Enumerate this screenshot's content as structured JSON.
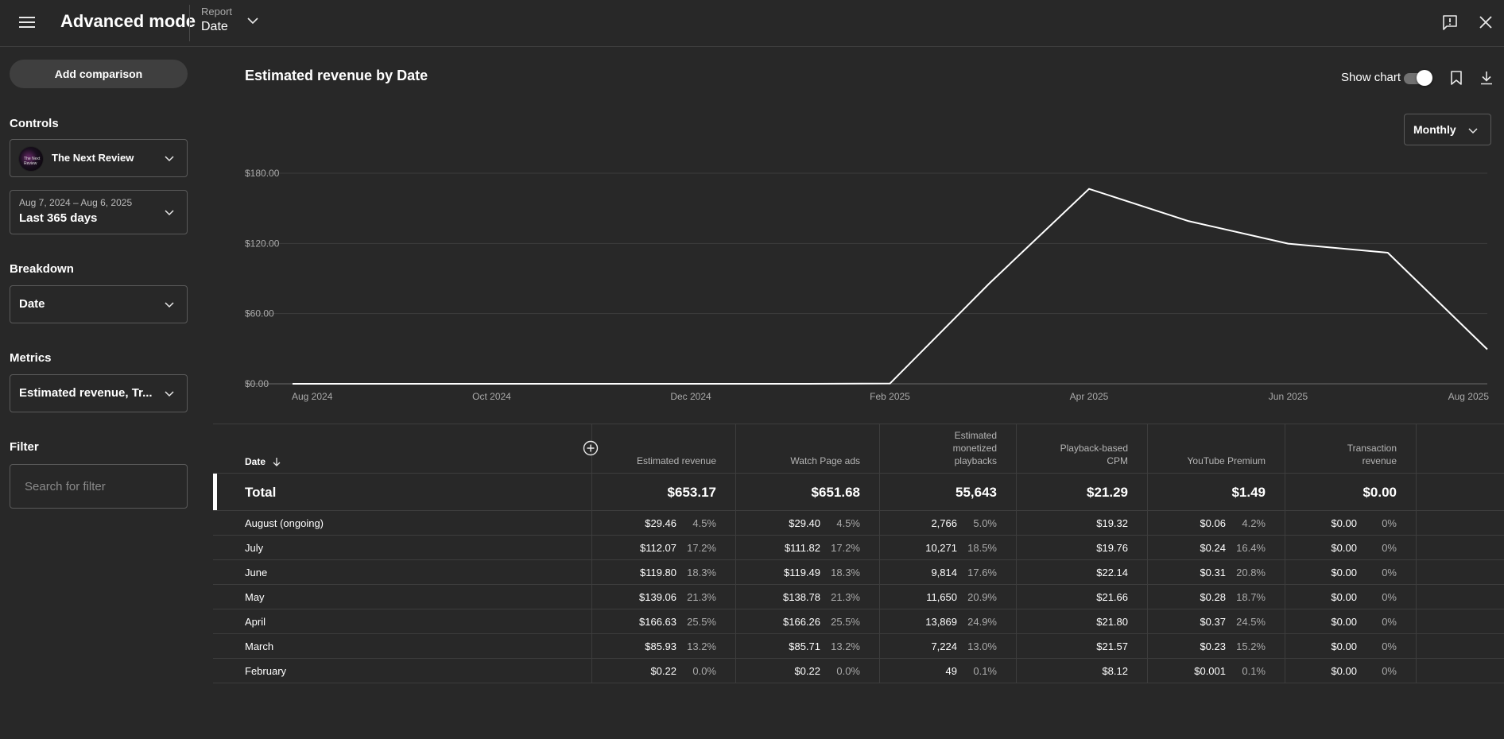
{
  "header": {
    "title": "Advanced mode",
    "report_label": "Report",
    "report_value": "Date"
  },
  "sidebar": {
    "add_comparison": "Add comparison",
    "controls_label": "Controls",
    "channel": "The Next Review",
    "channel_avatar_text": "The Next Review",
    "date_range": "Aug 7, 2024 – Aug 6, 2025",
    "date_preset": "Last 365 days",
    "breakdown_label": "Breakdown",
    "breakdown_value": "Date",
    "metrics_label": "Metrics",
    "metrics_value": "Estimated revenue, Tr...",
    "filter_label": "Filter",
    "filter_placeholder": "Search for filter"
  },
  "main": {
    "chart_title": "Estimated revenue by Date",
    "show_chart_label": "Show chart",
    "show_chart_on": true,
    "period": "Monthly"
  },
  "chart_data": {
    "type": "line",
    "x": [
      "Aug 2024",
      "Sep 2024",
      "Oct 2024",
      "Nov 2024",
      "Dec 2024",
      "Jan 2025",
      "Feb 2025",
      "Mar 2025",
      "Apr 2025",
      "May 2025",
      "Jun 2025",
      "Jul 2025",
      "Aug 2025"
    ],
    "x_tick_labels": [
      "Aug 2024",
      "Oct 2024",
      "Dec 2024",
      "Feb 2025",
      "Apr 2025",
      "Jun 2025",
      "Aug 2025"
    ],
    "y_tick_labels": [
      "$0.00",
      "$60.00",
      "$120.00",
      "$180.00"
    ],
    "series": [
      {
        "values": [
          0,
          0,
          0,
          0,
          0,
          0,
          0.22,
          85.93,
          166.63,
          139.06,
          119.8,
          112.07,
          29.46
        ]
      }
    ],
    "ylim": [
      0,
      180
    ],
    "grid": true,
    "line_color": "#ffffff"
  },
  "table": {
    "columns": [
      {
        "label": "Date"
      },
      {
        "label": "Estimated revenue"
      },
      {
        "label": "Watch Page ads"
      },
      {
        "label": "Estimated monetized playbacks"
      },
      {
        "label": "Playback-based CPM"
      },
      {
        "label": "YouTube Premium"
      },
      {
        "label": "Transaction revenue"
      }
    ],
    "total": {
      "label": "Total",
      "values": [
        "$653.17",
        "$651.68",
        "55,643",
        "$21.29",
        "$1.49",
        "$0.00"
      ]
    },
    "rows": [
      {
        "label": "August (ongoing)",
        "cells": [
          [
            "$29.46",
            "4.5%"
          ],
          [
            "$29.40",
            "4.5%"
          ],
          [
            "2,766",
            "5.0%"
          ],
          [
            "$19.32",
            ""
          ],
          [
            "$0.06",
            "4.2%"
          ],
          [
            "$0.00",
            "0%"
          ]
        ]
      },
      {
        "label": "July",
        "cells": [
          [
            "$112.07",
            "17.2%"
          ],
          [
            "$111.82",
            "17.2%"
          ],
          [
            "10,271",
            "18.5%"
          ],
          [
            "$19.76",
            ""
          ],
          [
            "$0.24",
            "16.4%"
          ],
          [
            "$0.00",
            "0%"
          ]
        ]
      },
      {
        "label": "June",
        "cells": [
          [
            "$119.80",
            "18.3%"
          ],
          [
            "$119.49",
            "18.3%"
          ],
          [
            "9,814",
            "17.6%"
          ],
          [
            "$22.14",
            ""
          ],
          [
            "$0.31",
            "20.8%"
          ],
          [
            "$0.00",
            "0%"
          ]
        ]
      },
      {
        "label": "May",
        "cells": [
          [
            "$139.06",
            "21.3%"
          ],
          [
            "$138.78",
            "21.3%"
          ],
          [
            "11,650",
            "20.9%"
          ],
          [
            "$21.66",
            ""
          ],
          [
            "$0.28",
            "18.7%"
          ],
          [
            "$0.00",
            "0%"
          ]
        ]
      },
      {
        "label": "April",
        "cells": [
          [
            "$166.63",
            "25.5%"
          ],
          [
            "$166.26",
            "25.5%"
          ],
          [
            "13,869",
            "24.9%"
          ],
          [
            "$21.80",
            ""
          ],
          [
            "$0.37",
            "24.5%"
          ],
          [
            "$0.00",
            "0%"
          ]
        ]
      },
      {
        "label": "March",
        "cells": [
          [
            "$85.93",
            "13.2%"
          ],
          [
            "$85.71",
            "13.2%"
          ],
          [
            "7,224",
            "13.0%"
          ],
          [
            "$21.57",
            ""
          ],
          [
            "$0.23",
            "15.2%"
          ],
          [
            "$0.00",
            "0%"
          ]
        ]
      },
      {
        "label": "February",
        "cells": [
          [
            "$0.22",
            "0.0%"
          ],
          [
            "$0.22",
            "0.0%"
          ],
          [
            "49",
            "0.1%"
          ],
          [
            "$8.12",
            ""
          ],
          [
            "$0.001",
            "0.1%"
          ],
          [
            "$0.00",
            "0%"
          ]
        ]
      }
    ]
  }
}
